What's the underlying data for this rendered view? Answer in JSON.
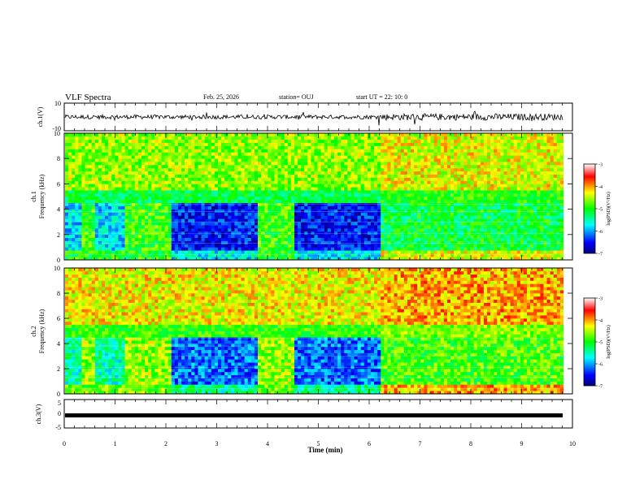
{
  "header": {
    "title": "VLF Spectra",
    "date": "Feb. 25, 2026",
    "station": "station= OUJ",
    "start": "start UT = 22: 10: 0"
  },
  "chart_data": [
    {
      "type": "line",
      "panel": "ch1-waveform",
      "ylabel": "ch.1(V)",
      "ylim": [
        -10,
        10
      ],
      "y_ticks": [
        "10",
        "-10"
      ],
      "xlim": [
        0,
        10
      ],
      "baseline": 0,
      "noise_amplitude": 1.5,
      "trace_color": "#000000"
    },
    {
      "type": "heatmap",
      "panel": "ch1-spectrogram",
      "ylabel_line1": "ch.1",
      "ylabel_line2": "Frequency (kHz)",
      "ylim": [
        0,
        10
      ],
      "y_ticks": [
        "0",
        "2",
        "4",
        "6",
        "8",
        "10"
      ],
      "xlim": [
        0,
        10
      ],
      "colorbar": {
        "label": "log(PSD)(V²/Hz)",
        "range": [
          -7,
          -3
        ],
        "ticks": [
          "-3",
          "-4",
          "-5",
          "-6",
          "-7"
        ]
      }
    },
    {
      "type": "heatmap",
      "panel": "ch2-spectrogram",
      "ylabel_line1": "ch.2",
      "ylabel_line2": "Frequency (kHz)",
      "ylim": [
        0,
        10
      ],
      "y_ticks": [
        "0",
        "2",
        "4",
        "6",
        "8",
        "10"
      ],
      "xlim": [
        0,
        10
      ],
      "colorbar": {
        "label": "log(PSD)(V²/Hz)",
        "range": [
          -7,
          -3
        ],
        "ticks": [
          "-3",
          "-4",
          "-5",
          "-6",
          "-7"
        ]
      }
    },
    {
      "type": "line",
      "panel": "ch3-waveform",
      "ylabel": "ch.3(V)",
      "ylim": [
        -5,
        5
      ],
      "y_ticks": [
        "5",
        "0",
        "-5"
      ],
      "xlim": [
        0,
        10
      ],
      "baseline": -1.4,
      "trace_color": "#000000"
    }
  ],
  "x_axis": {
    "label": "Time (min)",
    "ticks": [
      "0",
      "1",
      "2",
      "3",
      "4",
      "5",
      "6",
      "7",
      "8",
      "9",
      "10"
    ]
  }
}
